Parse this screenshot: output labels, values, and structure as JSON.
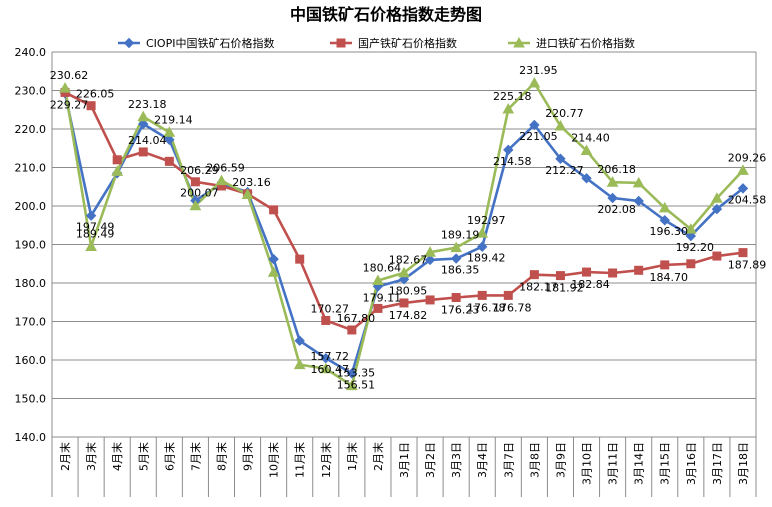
{
  "chart_data": {
    "type": "line",
    "title": "中国铁矿石价格指数走势图",
    "xlabel": "",
    "ylabel": "",
    "ylim": [
      140,
      240
    ],
    "yticks": [
      "140.0",
      "150.0",
      "160.0",
      "170.0",
      "180.0",
      "190.0",
      "200.0",
      "210.0",
      "220.0",
      "230.0",
      "240.0"
    ],
    "grid": "horizontal",
    "legend_position": "top",
    "categories": [
      "2月末",
      "3月末",
      "4月末",
      "5月末",
      "6月末",
      "7月末",
      "8月末",
      "9月末",
      "10月末",
      "11月末",
      "12月末",
      "1月末",
      "2月末",
      "3月1日",
      "3月2日",
      "3月3日",
      "3月4日",
      "3月7日",
      "3月8日",
      "3月9日",
      "3月10日",
      "3月11日",
      "3月14日",
      "3月15日",
      "3月16日",
      "3月17日",
      "3月18日"
    ],
    "series": [
      {
        "name": "CIOPI中国铁矿石价格指数",
        "color": "#4472c4",
        "marker": "diamond",
        "values": [
          229.27,
          197.49,
          208.5,
          221.3,
          217.2,
          201.4,
          205.8,
          203.6,
          186.2,
          165.0,
          160.47,
          156.51,
          179.11,
          180.95,
          186.0,
          186.35,
          189.42,
          214.58,
          221.05,
          212.27,
          207.2,
          202.08,
          201.3,
          196.3,
          192.2,
          199.2,
          204.58
        ]
      },
      {
        "name": "国产铁矿石价格指数",
        "color": "#c0504d",
        "marker": "square",
        "values": [
          229.5,
          226.05,
          212.0,
          214.04,
          211.6,
          206.29,
          205.2,
          203.16,
          199.0,
          186.2,
          170.27,
          167.8,
          173.4,
          174.82,
          175.6,
          176.23,
          176.78,
          176.78,
          182.17,
          181.92,
          182.84,
          182.6,
          183.3,
          184.7,
          185.0,
          187.0,
          187.89
        ]
      },
      {
        "name": "进口铁矿石价格指数",
        "color": "#9bbb59",
        "marker": "triangle",
        "values": [
          230.62,
          189.49,
          209.0,
          223.18,
          219.14,
          200.07,
          206.59,
          203.0,
          182.8,
          158.8,
          157.72,
          153.35,
          180.64,
          182.67,
          188.0,
          189.19,
          192.97,
          225.18,
          231.95,
          220.77,
          214.4,
          206.18,
          206.0,
          199.5,
          194.0,
          202.0,
          209.26
        ]
      }
    ],
    "data_labels": [
      {
        "series": 0,
        "index": 0,
        "text": "229.27"
      },
      {
        "series": 0,
        "index": 1,
        "text": "197.49"
      },
      {
        "series": 0,
        "index": 10,
        "text": "160.47"
      },
      {
        "series": 0,
        "index": 11,
        "text": "156.51"
      },
      {
        "series": 0,
        "index": 12,
        "text": "179.11"
      },
      {
        "series": 0,
        "index": 13,
        "text": "180.95"
      },
      {
        "series": 0,
        "index": 15,
        "text": "186.35"
      },
      {
        "series": 0,
        "index": 16,
        "text": "189.42"
      },
      {
        "series": 0,
        "index": 17,
        "text": "214.58"
      },
      {
        "series": 0,
        "index": 18,
        "text": "221.05"
      },
      {
        "series": 0,
        "index": 19,
        "text": "212.27"
      },
      {
        "series": 0,
        "index": 21,
        "text": "202.08"
      },
      {
        "series": 0,
        "index": 23,
        "text": "196.30"
      },
      {
        "series": 0,
        "index": 24,
        "text": "192.20"
      },
      {
        "series": 0,
        "index": 26,
        "text": "204.58"
      },
      {
        "series": 1,
        "index": 1,
        "text": "226.05"
      },
      {
        "series": 1,
        "index": 3,
        "text": "214.04"
      },
      {
        "series": 1,
        "index": 5,
        "text": "206.29"
      },
      {
        "series": 1,
        "index": 7,
        "text": "203.16"
      },
      {
        "series": 1,
        "index": 10,
        "text": "170.27"
      },
      {
        "series": 1,
        "index": 11,
        "text": "167.80"
      },
      {
        "series": 1,
        "index": 13,
        "text": "174.82"
      },
      {
        "series": 1,
        "index": 15,
        "text": "176.23"
      },
      {
        "series": 1,
        "index": 16,
        "text": "176.78"
      },
      {
        "series": 1,
        "index": 17,
        "text": "176.78"
      },
      {
        "series": 1,
        "index": 18,
        "text": "182.17"
      },
      {
        "series": 1,
        "index": 19,
        "text": "181.92"
      },
      {
        "series": 1,
        "index": 20,
        "text": "182.84"
      },
      {
        "series": 1,
        "index": 23,
        "text": "184.70"
      },
      {
        "series": 1,
        "index": 26,
        "text": "187.89"
      },
      {
        "series": 2,
        "index": 0,
        "text": "230.62"
      },
      {
        "series": 2,
        "index": 1,
        "text": "189.49"
      },
      {
        "series": 2,
        "index": 3,
        "text": "223.18"
      },
      {
        "series": 2,
        "index": 4,
        "text": "219.14"
      },
      {
        "series": 2,
        "index": 5,
        "text": "200.07"
      },
      {
        "series": 2,
        "index": 6,
        "text": "206.59"
      },
      {
        "series": 2,
        "index": 10,
        "text": "157.72"
      },
      {
        "series": 2,
        "index": 11,
        "text": "153.35"
      },
      {
        "series": 2,
        "index": 12,
        "text": "180.64"
      },
      {
        "series": 2,
        "index": 13,
        "text": "182.67"
      },
      {
        "series": 2,
        "index": 15,
        "text": "189.19"
      },
      {
        "series": 2,
        "index": 16,
        "text": "192.97"
      },
      {
        "series": 2,
        "index": 17,
        "text": "225.18"
      },
      {
        "series": 2,
        "index": 18,
        "text": "231.95"
      },
      {
        "series": 2,
        "index": 19,
        "text": "220.77"
      },
      {
        "series": 2,
        "index": 20,
        "text": "214.40"
      },
      {
        "series": 2,
        "index": 21,
        "text": "206.18"
      },
      {
        "series": 2,
        "index": 26,
        "text": "209.26"
      }
    ]
  }
}
